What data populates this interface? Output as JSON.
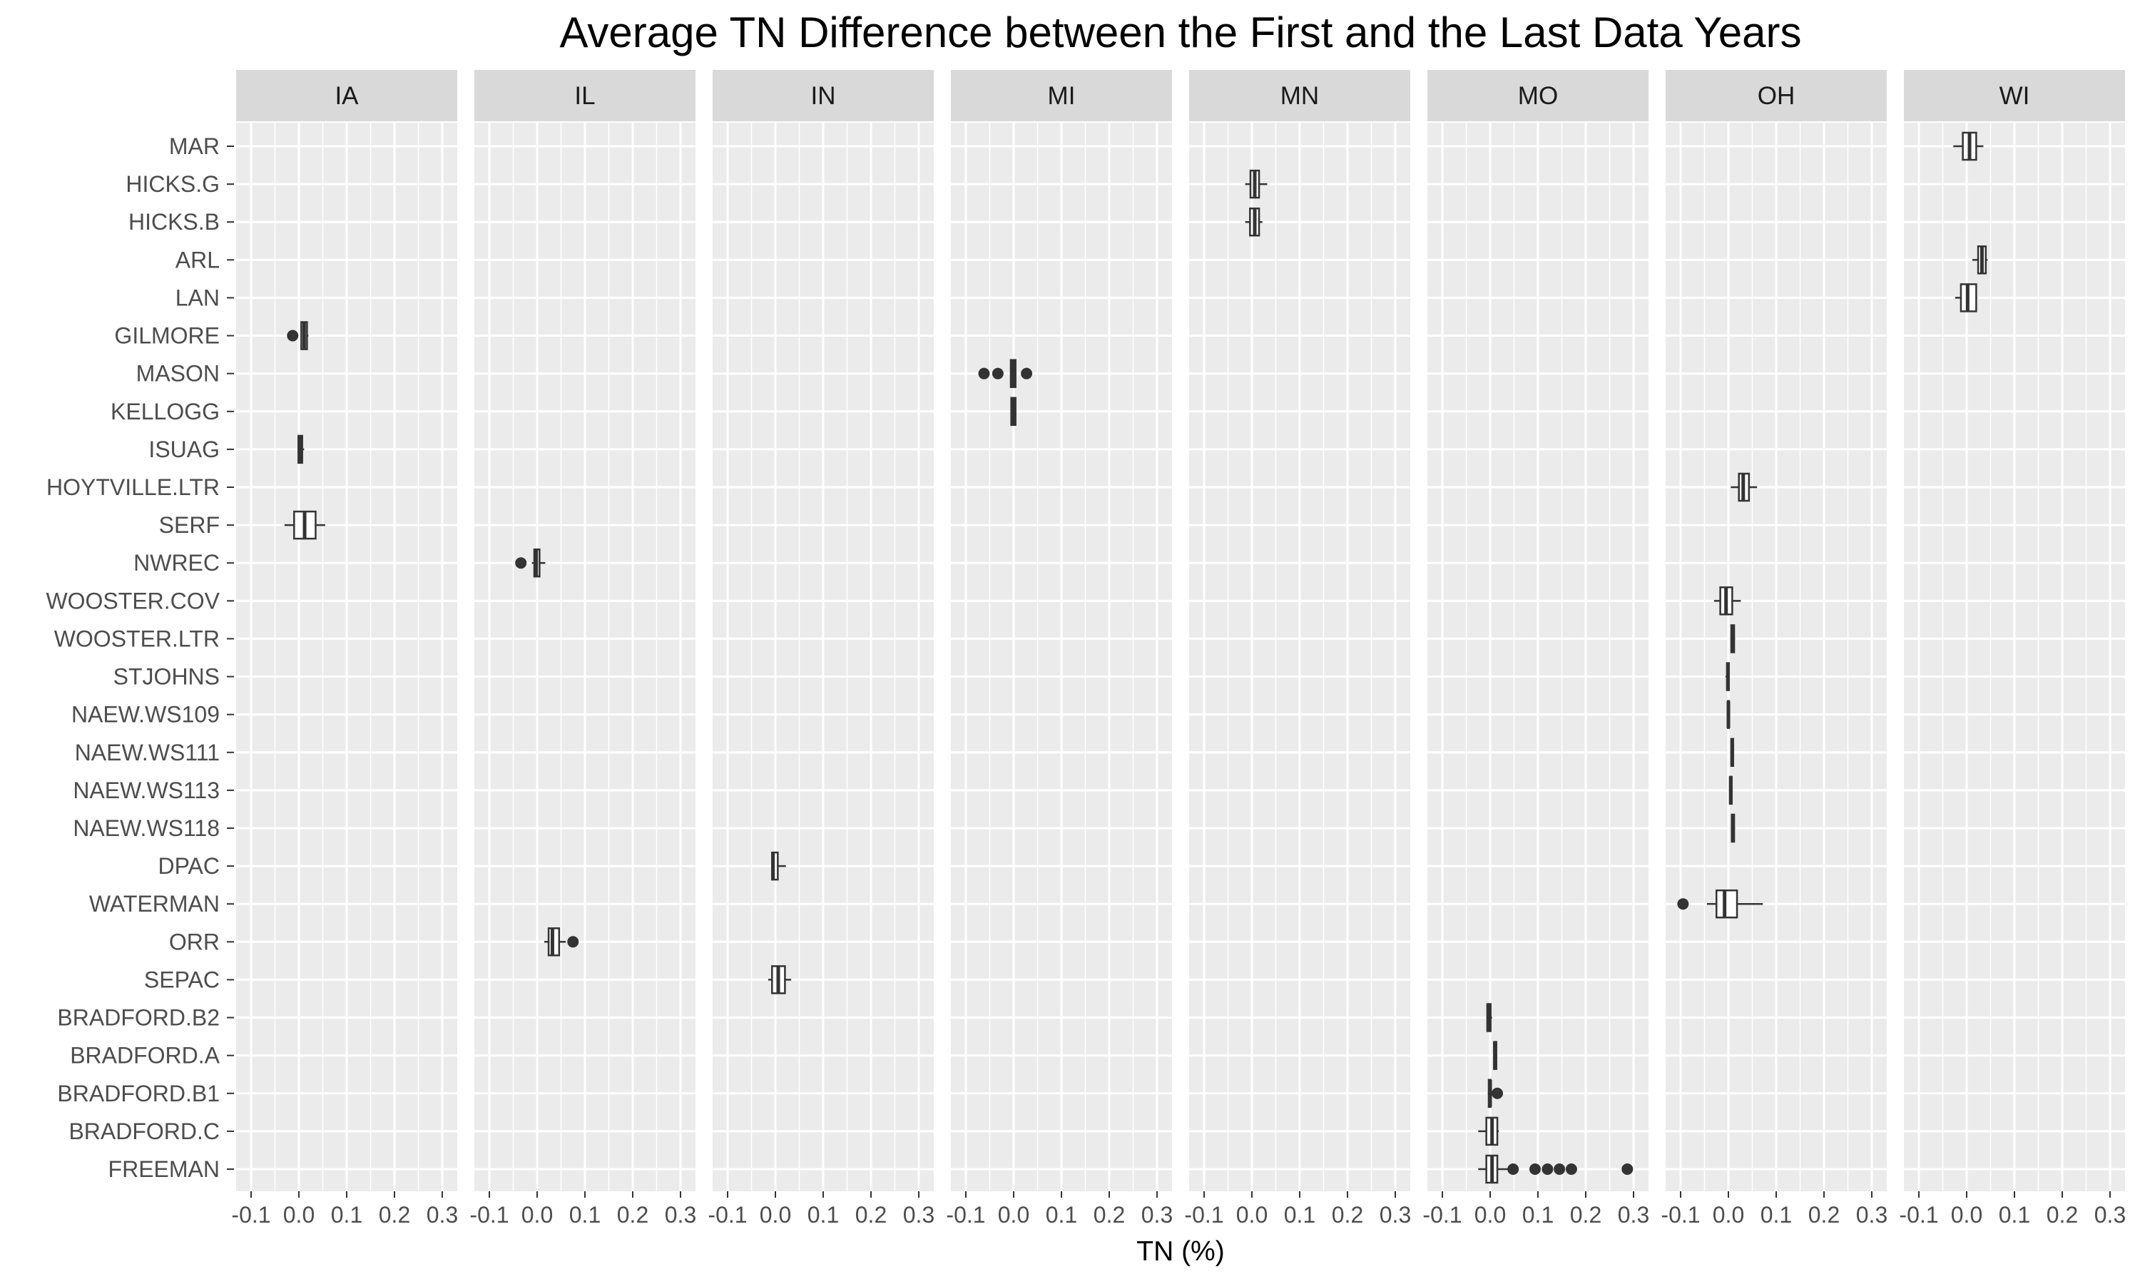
{
  "chart_data": {
    "type": "boxplot",
    "title": "Average TN Difference between the First and the Last Data Years",
    "xlabel": "TN (%)",
    "ylabel": "",
    "xlim": [
      -0.1,
      0.3
    ],
    "x_ticks": [
      "-0.1",
      "0.0",
      "0.1",
      "0.2",
      "0.3"
    ],
    "x_tick_values": [
      -0.1,
      0.0,
      0.1,
      0.2,
      0.3
    ],
    "grid": true,
    "panels": [
      "IA",
      "IL",
      "IN",
      "MI",
      "MN",
      "MO",
      "OH",
      "WI"
    ],
    "sites": [
      "MAR",
      "HICKS.G",
      "HICKS.B",
      "ARL",
      "LAN",
      "GILMORE",
      "MASON",
      "KELLOGG",
      "ISUAG",
      "HOYTVILLE.LTR",
      "SERF",
      "NWREC",
      "WOOSTER.COV",
      "WOOSTER.LTR",
      "STJOHNS",
      "NAEW.WS109",
      "NAEW.WS111",
      "NAEW.WS113",
      "NAEW.WS118",
      "DPAC",
      "WATERMAN",
      "ORR",
      "SEPAC",
      "BRADFORD.B2",
      "BRADFORD.A",
      "BRADFORD.B1",
      "BRADFORD.C",
      "FREEMAN"
    ],
    "boxes": [
      {
        "panel": "IA",
        "site": "GILMORE",
        "whisker_low": 0.005,
        "q1": 0.005,
        "median": 0.011,
        "q3": 0.017,
        "whisker_high": 0.02,
        "outliers": [
          -0.013
        ]
      },
      {
        "panel": "IA",
        "site": "ISUAG",
        "whisker_low": -0.003,
        "q1": -0.001,
        "median": 0.003,
        "q3": 0.007,
        "whisker_high": 0.011,
        "outliers": []
      },
      {
        "panel": "IA",
        "site": "SERF",
        "whisker_low": -0.03,
        "q1": -0.01,
        "median": 0.012,
        "q3": 0.035,
        "whisker_high": 0.055,
        "outliers": []
      },
      {
        "panel": "IL",
        "site": "NWREC",
        "whisker_low": -0.011,
        "q1": -0.006,
        "median": -0.002,
        "q3": 0.005,
        "whisker_high": 0.017,
        "outliers": [
          -0.034
        ]
      },
      {
        "panel": "IL",
        "site": "ORR",
        "whisker_low": 0.015,
        "q1": 0.024,
        "median": 0.032,
        "q3": 0.046,
        "whisker_high": 0.06,
        "outliers": [
          0.075
        ]
      },
      {
        "panel": "IN",
        "site": "DPAC",
        "whisker_low": -0.008,
        "q1": -0.007,
        "median": -0.005,
        "q3": 0.005,
        "whisker_high": 0.022,
        "outliers": []
      },
      {
        "panel": "IN",
        "site": "SEPAC",
        "whisker_low": -0.015,
        "q1": -0.007,
        "median": 0.006,
        "q3": 0.02,
        "whisker_high": 0.033,
        "outliers": []
      },
      {
        "panel": "MI",
        "site": "MASON",
        "whisker_low": -0.007,
        "q1": -0.006,
        "median": -0.001,
        "q3": 0.004,
        "whisker_high": 0.006,
        "outliers": [
          -0.062,
          -0.033,
          0.027
        ]
      },
      {
        "panel": "MI",
        "site": "KELLOGG",
        "whisker_low": -0.006,
        "q1": -0.005,
        "median": -0.001,
        "q3": 0.004,
        "whisker_high": 0.005,
        "outliers": []
      },
      {
        "panel": "MN",
        "site": "HICKS.G",
        "whisker_low": -0.014,
        "q1": -0.003,
        "median": 0.006,
        "q3": 0.015,
        "whisker_high": 0.032,
        "outliers": []
      },
      {
        "panel": "MN",
        "site": "HICKS.B",
        "whisker_low": -0.014,
        "q1": -0.004,
        "median": 0.006,
        "q3": 0.015,
        "whisker_high": 0.022,
        "outliers": []
      },
      {
        "panel": "MO",
        "site": "BRADFORD.B2",
        "whisker_low": -0.008,
        "q1": -0.006,
        "median": -0.004,
        "q3": 0.001,
        "whisker_high": 0.004,
        "outliers": []
      },
      {
        "panel": "MO",
        "site": "BRADFORD.A",
        "whisker_low": 0.007,
        "q1": 0.008,
        "median": 0.01,
        "q3": 0.013,
        "whisker_high": 0.014,
        "outliers": []
      },
      {
        "panel": "MO",
        "site": "BRADFORD.B1",
        "whisker_low": -0.005,
        "q1": -0.003,
        "median": 0.0,
        "q3": 0.001,
        "whisker_high": 0.003,
        "outliers": [
          0.015
        ]
      },
      {
        "panel": "MO",
        "site": "BRADFORD.C",
        "whisker_low": -0.025,
        "q1": -0.008,
        "median": 0.004,
        "q3": 0.015,
        "whisker_high": 0.018,
        "outliers": []
      },
      {
        "panel": "MO",
        "site": "FREEMAN",
        "whisker_low": -0.025,
        "q1": -0.008,
        "median": 0.004,
        "q3": 0.015,
        "whisker_high": 0.04,
        "outliers": [
          0.048,
          0.094,
          0.12,
          0.145,
          0.17,
          0.287
        ]
      },
      {
        "panel": "OH",
        "site": "HOYTVILLE.LTR",
        "whisker_low": 0.005,
        "q1": 0.022,
        "median": 0.031,
        "q3": 0.043,
        "whisker_high": 0.06,
        "outliers": []
      },
      {
        "panel": "OH",
        "site": "WOOSTER.COV",
        "whisker_low": -0.03,
        "q1": -0.017,
        "median": -0.005,
        "q3": 0.008,
        "whisker_high": 0.026,
        "outliers": []
      },
      {
        "panel": "OH",
        "site": "WOOSTER.LTR",
        "whisker_low": 0.004,
        "q1": 0.006,
        "median": 0.009,
        "q3": 0.012,
        "whisker_high": 0.014,
        "outliers": []
      },
      {
        "panel": "OH",
        "site": "STJOHNS",
        "whisker_low": -0.006,
        "q1": -0.003,
        "median": -0.001,
        "q3": 0.001,
        "whisker_high": 0.003,
        "outliers": []
      },
      {
        "panel": "OH",
        "site": "NAEW.WS109",
        "whisker_low": -0.002,
        "q1": -0.001,
        "median": 0.0,
        "q3": 0.001,
        "whisker_high": 0.002,
        "outliers": []
      },
      {
        "panel": "OH",
        "site": "NAEW.WS111",
        "whisker_low": 0.004,
        "q1": 0.006,
        "median": 0.008,
        "q3": 0.01,
        "whisker_high": 0.012,
        "outliers": []
      },
      {
        "panel": "OH",
        "site": "NAEW.WS113",
        "whisker_low": 0.002,
        "q1": 0.003,
        "median": 0.005,
        "q3": 0.007,
        "whisker_high": 0.008,
        "outliers": []
      },
      {
        "panel": "OH",
        "site": "NAEW.WS118",
        "whisker_low": 0.005,
        "q1": 0.007,
        "median": 0.009,
        "q3": 0.012,
        "whisker_high": 0.014,
        "outliers": []
      },
      {
        "panel": "OH",
        "site": "WATERMAN",
        "whisker_low": -0.045,
        "q1": -0.025,
        "median": -0.008,
        "q3": 0.018,
        "whisker_high": 0.072,
        "outliers": [
          -0.095
        ]
      },
      {
        "panel": "WI",
        "site": "MAR",
        "whisker_low": -0.028,
        "q1": -0.008,
        "median": 0.006,
        "q3": 0.02,
        "whisker_high": 0.035,
        "outliers": []
      },
      {
        "panel": "WI",
        "site": "ARL",
        "whisker_low": 0.012,
        "q1": 0.024,
        "median": 0.032,
        "q3": 0.04,
        "whisker_high": 0.044,
        "outliers": []
      },
      {
        "panel": "WI",
        "site": "LAN",
        "whisker_low": -0.024,
        "q1": -0.012,
        "median": 0.002,
        "q3": 0.02,
        "whisker_high": 0.022,
        "outliers": []
      }
    ],
    "colors": {
      "panel_background": "#ebebeb",
      "grid": "#ffffff",
      "strip_background": "#d9d9d9",
      "box_fill": "#ffffff",
      "box_stroke": "#333333",
      "axis_text": "#4d4d4d",
      "title_text": "#000000"
    }
  }
}
